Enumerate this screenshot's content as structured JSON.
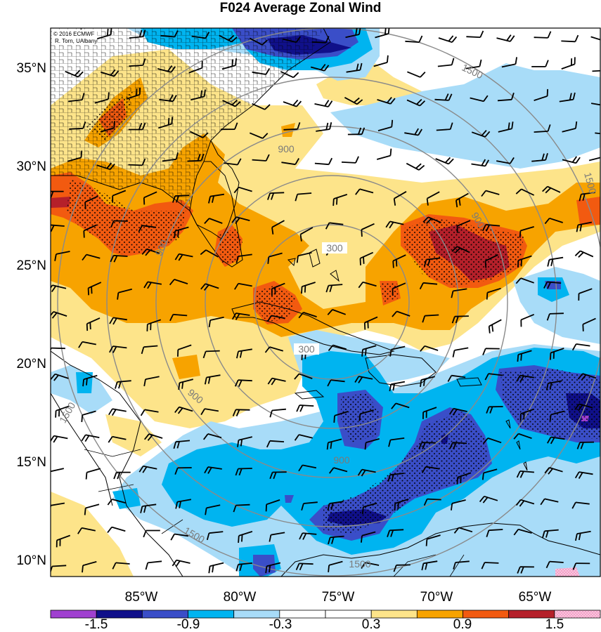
{
  "title": "F024 Average Zonal Wind",
  "credit": {
    "line1": "© 2016 ECMWF",
    "line2": "R. Torn, UAlbany"
  },
  "lat_labels": [
    "35°N",
    "30°N",
    "25°N",
    "20°N",
    "15°N",
    "10°N"
  ],
  "lon_labels": [
    "85°W",
    "80°W",
    "75°W",
    "70°W",
    "65°W"
  ],
  "ring_labels": [
    "300",
    "300",
    "900",
    "900",
    "900",
    "900",
    "900",
    "1500",
    "1500",
    "1500",
    "1500",
    "1500"
  ],
  "colorbar": {
    "labels": [
      "-1.5",
      "-0.9",
      "-0.3",
      "0.3",
      "0.9",
      "1.5"
    ],
    "colors": [
      "#a040d0",
      "#10108a",
      "#3a4ec8",
      "#00b4f0",
      "#a8dcf8",
      "#ffffff",
      "#ffffff",
      "#fde48a",
      "#f7a300",
      "#f25a10",
      "#b5202a",
      "#f4a0c8"
    ]
  },
  "fill_colors": {
    "light_blue": "#a8dcf8",
    "medium_blue": "#00b4f0",
    "dark_blue": "#3a4ec8",
    "navy": "#10108a",
    "light_yellow": "#fde48a",
    "orange": "#f7a300",
    "red_orange": "#f25a10",
    "dark_red": "#b5202a"
  }
}
